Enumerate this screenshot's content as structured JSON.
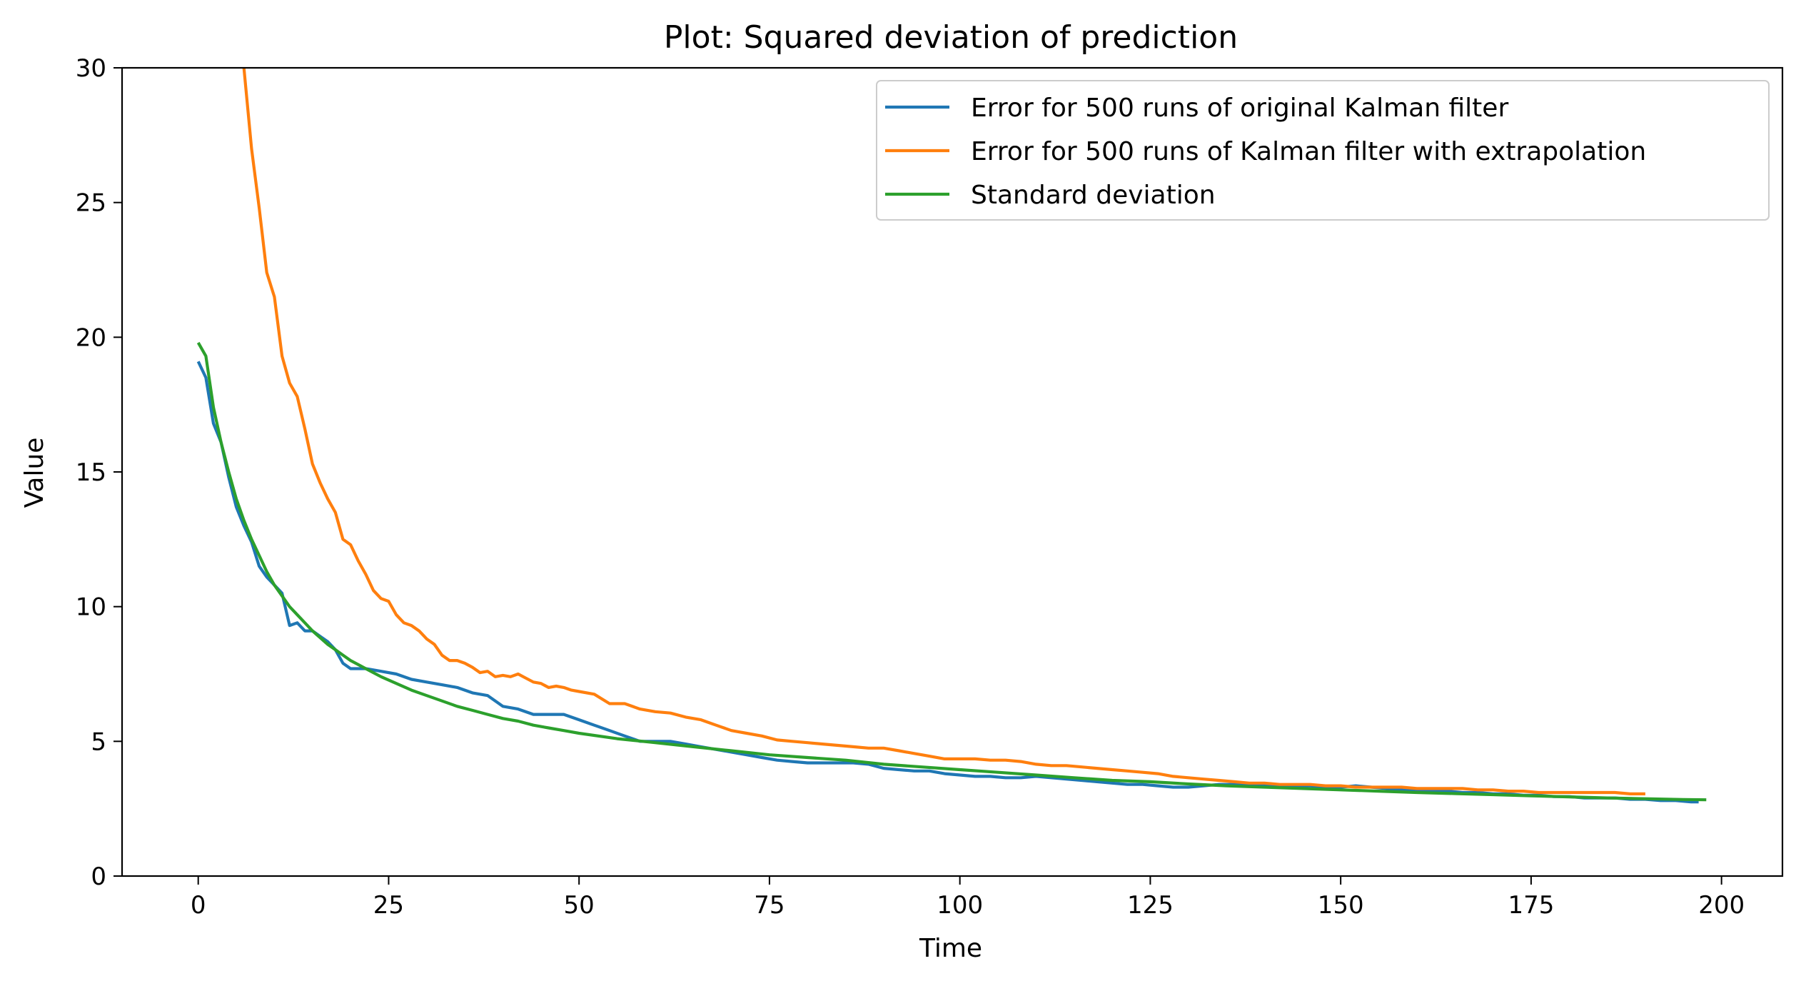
{
  "chart_data": {
    "type": "line",
    "title": "Plot: Squared deviation of prediction",
    "xlabel": "Time",
    "ylabel": "Value",
    "xlim": [
      -10,
      208
    ],
    "ylim": [
      0,
      30
    ],
    "xticks": [
      0,
      25,
      50,
      75,
      100,
      125,
      150,
      175,
      200
    ],
    "yticks": [
      0,
      5,
      10,
      15,
      20,
      25,
      30
    ],
    "legend": "top-right",
    "grid": false,
    "series": [
      {
        "name": "Error for 500 runs of original Kalman filter",
        "color": "#1f77b4",
        "points": [
          [
            0,
            19.1
          ],
          [
            1,
            18.5
          ],
          [
            2,
            16.8
          ],
          [
            3,
            16.1
          ],
          [
            4,
            14.8
          ],
          [
            5,
            13.7
          ],
          [
            6,
            13.0
          ],
          [
            7,
            12.4
          ],
          [
            8,
            11.5
          ],
          [
            9,
            11.1
          ],
          [
            10,
            10.8
          ],
          [
            11,
            10.5
          ],
          [
            12,
            9.3
          ],
          [
            13,
            9.4
          ],
          [
            14,
            9.1
          ],
          [
            15,
            9.1
          ],
          [
            16,
            8.9
          ],
          [
            17,
            8.7
          ],
          [
            18,
            8.4
          ],
          [
            19,
            7.9
          ],
          [
            20,
            7.7
          ],
          [
            22,
            7.7
          ],
          [
            24,
            7.6
          ],
          [
            26,
            7.5
          ],
          [
            28,
            7.3
          ],
          [
            30,
            7.2
          ],
          [
            32,
            7.1
          ],
          [
            34,
            7.0
          ],
          [
            36,
            6.8
          ],
          [
            38,
            6.7
          ],
          [
            40,
            6.3
          ],
          [
            42,
            6.2
          ],
          [
            44,
            6.0
          ],
          [
            46,
            6.0
          ],
          [
            48,
            6.0
          ],
          [
            50,
            5.8
          ],
          [
            52,
            5.6
          ],
          [
            54,
            5.4
          ],
          [
            56,
            5.2
          ],
          [
            58,
            5.0
          ],
          [
            60,
            5.0
          ],
          [
            62,
            5.0
          ],
          [
            64,
            4.9
          ],
          [
            66,
            4.8
          ],
          [
            68,
            4.7
          ],
          [
            70,
            4.6
          ],
          [
            72,
            4.5
          ],
          [
            74,
            4.4
          ],
          [
            76,
            4.3
          ],
          [
            78,
            4.25
          ],
          [
            80,
            4.2
          ],
          [
            82,
            4.2
          ],
          [
            84,
            4.2
          ],
          [
            86,
            4.2
          ],
          [
            88,
            4.15
          ],
          [
            90,
            4.0
          ],
          [
            92,
            3.95
          ],
          [
            94,
            3.9
          ],
          [
            96,
            3.9
          ],
          [
            98,
            3.8
          ],
          [
            100,
            3.75
          ],
          [
            102,
            3.7
          ],
          [
            104,
            3.7
          ],
          [
            106,
            3.65
          ],
          [
            108,
            3.65
          ],
          [
            110,
            3.7
          ],
          [
            112,
            3.65
          ],
          [
            114,
            3.6
          ],
          [
            116,
            3.55
          ],
          [
            118,
            3.5
          ],
          [
            120,
            3.45
          ],
          [
            122,
            3.4
          ],
          [
            124,
            3.4
          ],
          [
            126,
            3.35
          ],
          [
            128,
            3.3
          ],
          [
            130,
            3.3
          ],
          [
            132,
            3.35
          ],
          [
            134,
            3.4
          ],
          [
            136,
            3.4
          ],
          [
            138,
            3.4
          ],
          [
            140,
            3.4
          ],
          [
            142,
            3.35
          ],
          [
            144,
            3.35
          ],
          [
            146,
            3.35
          ],
          [
            148,
            3.3
          ],
          [
            150,
            3.3
          ],
          [
            152,
            3.35
          ],
          [
            154,
            3.3
          ],
          [
            156,
            3.25
          ],
          [
            158,
            3.2
          ],
          [
            160,
            3.2
          ],
          [
            162,
            3.15
          ],
          [
            164,
            3.15
          ],
          [
            166,
            3.1
          ],
          [
            168,
            3.1
          ],
          [
            170,
            3.05
          ],
          [
            172,
            3.05
          ],
          [
            174,
            3.0
          ],
          [
            176,
            3.0
          ],
          [
            178,
            2.95
          ],
          [
            180,
            2.95
          ],
          [
            182,
            2.9
          ],
          [
            184,
            2.9
          ],
          [
            186,
            2.9
          ],
          [
            188,
            2.85
          ],
          [
            190,
            2.85
          ],
          [
            192,
            2.8
          ],
          [
            194,
            2.8
          ],
          [
            196,
            2.75
          ],
          [
            197,
            2.75
          ]
        ]
      },
      {
        "name": "Error for 500 runs of Kalman filter with extrapolation",
        "color": "#ff7f0e",
        "points": [
          [
            6,
            30.0
          ],
          [
            7,
            27.0
          ],
          [
            8,
            24.8
          ],
          [
            9,
            22.4
          ],
          [
            10,
            21.5
          ],
          [
            11,
            19.3
          ],
          [
            12,
            18.3
          ],
          [
            13,
            17.8
          ],
          [
            14,
            16.6
          ],
          [
            15,
            15.3
          ],
          [
            16,
            14.6
          ],
          [
            17,
            14.0
          ],
          [
            18,
            13.5
          ],
          [
            19,
            12.5
          ],
          [
            20,
            12.3
          ],
          [
            21,
            11.7
          ],
          [
            22,
            11.2
          ],
          [
            23,
            10.6
          ],
          [
            24,
            10.3
          ],
          [
            25,
            10.2
          ],
          [
            26,
            9.7
          ],
          [
            27,
            9.4
          ],
          [
            28,
            9.3
          ],
          [
            29,
            9.1
          ],
          [
            30,
            8.8
          ],
          [
            31,
            8.6
          ],
          [
            32,
            8.2
          ],
          [
            33,
            8.0
          ],
          [
            34,
            8.0
          ],
          [
            35,
            7.9
          ],
          [
            36,
            7.75
          ],
          [
            37,
            7.55
          ],
          [
            38,
            7.6
          ],
          [
            39,
            7.4
          ],
          [
            40,
            7.45
          ],
          [
            41,
            7.4
          ],
          [
            42,
            7.5
          ],
          [
            43,
            7.35
          ],
          [
            44,
            7.2
          ],
          [
            45,
            7.15
          ],
          [
            46,
            7.0
          ],
          [
            47,
            7.05
          ],
          [
            48,
            7.0
          ],
          [
            49,
            6.9
          ],
          [
            50,
            6.85
          ],
          [
            52,
            6.75
          ],
          [
            54,
            6.4
          ],
          [
            56,
            6.4
          ],
          [
            58,
            6.2
          ],
          [
            60,
            6.1
          ],
          [
            62,
            6.05
          ],
          [
            64,
            5.9
          ],
          [
            66,
            5.8
          ],
          [
            68,
            5.6
          ],
          [
            70,
            5.4
          ],
          [
            72,
            5.3
          ],
          [
            74,
            5.2
          ],
          [
            76,
            5.05
          ],
          [
            78,
            5.0
          ],
          [
            80,
            4.95
          ],
          [
            82,
            4.9
          ],
          [
            84,
            4.85
          ],
          [
            86,
            4.8
          ],
          [
            88,
            4.75
          ],
          [
            90,
            4.75
          ],
          [
            92,
            4.65
          ],
          [
            94,
            4.55
          ],
          [
            96,
            4.45
          ],
          [
            98,
            4.35
          ],
          [
            100,
            4.35
          ],
          [
            102,
            4.35
          ],
          [
            104,
            4.3
          ],
          [
            106,
            4.3
          ],
          [
            108,
            4.25
          ],
          [
            110,
            4.15
          ],
          [
            112,
            4.1
          ],
          [
            114,
            4.1
          ],
          [
            116,
            4.05
          ],
          [
            118,
            4.0
          ],
          [
            120,
            3.95
          ],
          [
            122,
            3.9
          ],
          [
            124,
            3.85
          ],
          [
            126,
            3.8
          ],
          [
            128,
            3.7
          ],
          [
            130,
            3.65
          ],
          [
            132,
            3.6
          ],
          [
            134,
            3.55
          ],
          [
            136,
            3.5
          ],
          [
            138,
            3.45
          ],
          [
            140,
            3.45
          ],
          [
            142,
            3.4
          ],
          [
            144,
            3.4
          ],
          [
            146,
            3.4
          ],
          [
            148,
            3.35
          ],
          [
            150,
            3.35
          ],
          [
            152,
            3.3
          ],
          [
            154,
            3.3
          ],
          [
            156,
            3.3
          ],
          [
            158,
            3.3
          ],
          [
            160,
            3.25
          ],
          [
            162,
            3.25
          ],
          [
            164,
            3.25
          ],
          [
            166,
            3.25
          ],
          [
            168,
            3.2
          ],
          [
            170,
            3.2
          ],
          [
            172,
            3.15
          ],
          [
            174,
            3.15
          ],
          [
            176,
            3.1
          ],
          [
            178,
            3.1
          ],
          [
            180,
            3.1
          ],
          [
            182,
            3.1
          ],
          [
            184,
            3.1
          ],
          [
            186,
            3.1
          ],
          [
            188,
            3.05
          ],
          [
            190,
            3.05
          ]
        ]
      },
      {
        "name": "Standard deviation",
        "color": "#2ca02c",
        "points": [
          [
            0,
            19.8
          ],
          [
            1,
            19.3
          ],
          [
            2,
            17.4
          ],
          [
            3,
            16.1
          ],
          [
            4,
            15.0
          ],
          [
            5,
            14.0
          ],
          [
            6,
            13.2
          ],
          [
            7,
            12.5
          ],
          [
            8,
            11.9
          ],
          [
            9,
            11.3
          ],
          [
            10,
            10.8
          ],
          [
            11,
            10.4
          ],
          [
            12,
            10.0
          ],
          [
            13,
            9.7
          ],
          [
            14,
            9.4
          ],
          [
            15,
            9.1
          ],
          [
            16,
            8.85
          ],
          [
            17,
            8.6
          ],
          [
            18,
            8.4
          ],
          [
            19,
            8.2
          ],
          [
            20,
            8.0
          ],
          [
            22,
            7.7
          ],
          [
            24,
            7.4
          ],
          [
            26,
            7.15
          ],
          [
            28,
            6.9
          ],
          [
            30,
            6.7
          ],
          [
            32,
            6.5
          ],
          [
            34,
            6.3
          ],
          [
            36,
            6.15
          ],
          [
            38,
            6.0
          ],
          [
            40,
            5.85
          ],
          [
            42,
            5.75
          ],
          [
            44,
            5.6
          ],
          [
            46,
            5.5
          ],
          [
            48,
            5.4
          ],
          [
            50,
            5.3
          ],
          [
            55,
            5.1
          ],
          [
            60,
            4.95
          ],
          [
            65,
            4.8
          ],
          [
            70,
            4.65
          ],
          [
            75,
            4.5
          ],
          [
            80,
            4.4
          ],
          [
            85,
            4.3
          ],
          [
            90,
            4.15
          ],
          [
            95,
            4.05
          ],
          [
            100,
            3.95
          ],
          [
            105,
            3.85
          ],
          [
            110,
            3.75
          ],
          [
            115,
            3.65
          ],
          [
            120,
            3.55
          ],
          [
            125,
            3.5
          ],
          [
            130,
            3.42
          ],
          [
            135,
            3.35
          ],
          [
            140,
            3.3
          ],
          [
            145,
            3.25
          ],
          [
            150,
            3.2
          ],
          [
            155,
            3.15
          ],
          [
            160,
            3.1
          ],
          [
            165,
            3.06
          ],
          [
            170,
            3.02
          ],
          [
            175,
            2.98
          ],
          [
            180,
            2.94
          ],
          [
            185,
            2.9
          ],
          [
            190,
            2.87
          ],
          [
            195,
            2.84
          ],
          [
            198,
            2.83
          ]
        ]
      }
    ]
  }
}
